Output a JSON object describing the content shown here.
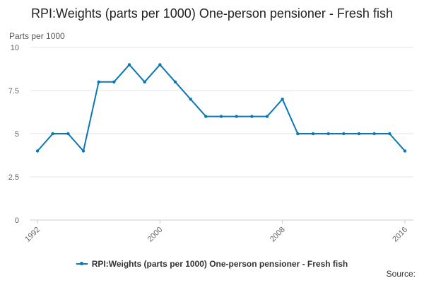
{
  "chart_data": {
    "type": "line",
    "title": "RPI:Weights (parts per 1000) One-person pensioner - Fresh fish",
    "ylabel": "Parts per 1000",
    "xlabel": "",
    "x_ticks": [
      "1992",
      "2000",
      "2008",
      "2016"
    ],
    "y_ticks": [
      "0",
      "2.5",
      "5",
      "7.5",
      "10"
    ],
    "ylim": [
      0,
      10
    ],
    "xlim": [
      1992,
      2016
    ],
    "grid": true,
    "legend_position": "bottom",
    "series": [
      {
        "name": "RPI:Weights (parts per 1000) One-person pensioner - Fresh fish",
        "color": "#0b77b5",
        "x": [
          1992,
          1993,
          1994,
          1995,
          1996,
          1997,
          1998,
          1999,
          2000,
          2001,
          2002,
          2003,
          2004,
          2005,
          2006,
          2007,
          2008,
          2009,
          2010,
          2011,
          2012,
          2013,
          2014,
          2015,
          2016
        ],
        "values": [
          4,
          5,
          5,
          4,
          8,
          8,
          9,
          8,
          9,
          8,
          7,
          6,
          6,
          6,
          6,
          6,
          7,
          5,
          5,
          5,
          5,
          5,
          5,
          5,
          4
        ]
      }
    ]
  },
  "footer": {
    "source_label": "Source:"
  }
}
